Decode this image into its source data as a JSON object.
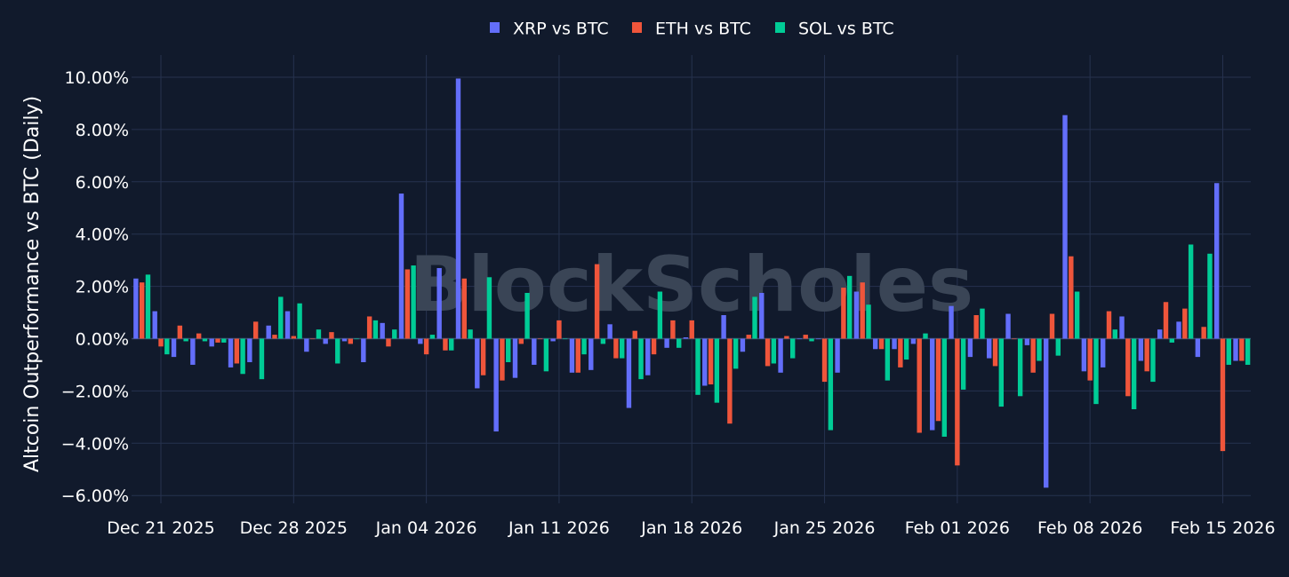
{
  "chart_data": {
    "type": "bar",
    "ylabel": "Altcoin Outperformance vs BTC (Daily)",
    "ylim": [
      -6.5,
      10.6
    ],
    "y_ticks": [
      -6,
      -4,
      -2,
      0,
      2,
      4,
      6,
      8,
      10
    ],
    "y_tick_labels": [
      "−6.00%",
      "−4.00%",
      "−2.00%",
      "0.00%",
      "2.00%",
      "4.00%",
      "6.00%",
      "8.00%",
      "10.00%"
    ],
    "x_ticks": [
      "2025-12-21",
      "2025-12-28",
      "2026-01-04",
      "2026-01-11",
      "2026-01-18",
      "2026-01-25",
      "2026-02-01",
      "2026-02-08",
      "2026-02-15"
    ],
    "x_tick_labels": [
      "Dec 21 2025",
      "Dec 28 2025",
      "Jan 04 2026",
      "Jan 11 2026",
      "Jan 18 2026",
      "Jan 25 2026",
      "Feb 01 2026",
      "Feb 08 2026",
      "Feb 15 2026"
    ],
    "xlim": [
      "2025-12-20",
      "2026-02-16"
    ],
    "grid": true,
    "legend_position": "top-center",
    "watermark": "BlockScholes",
    "x": [
      "2025-12-20",
      "2025-12-21",
      "2025-12-22",
      "2025-12-23",
      "2025-12-24",
      "2025-12-25",
      "2025-12-26",
      "2025-12-27",
      "2025-12-28",
      "2025-12-29",
      "2025-12-30",
      "2025-12-31",
      "2026-01-01",
      "2026-01-02",
      "2026-01-03",
      "2026-01-04",
      "2026-01-05",
      "2026-01-06",
      "2026-01-07",
      "2026-01-08",
      "2026-01-09",
      "2026-01-10",
      "2026-01-11",
      "2026-01-12",
      "2026-01-13",
      "2026-01-14",
      "2026-01-15",
      "2026-01-16",
      "2026-01-17",
      "2026-01-18",
      "2026-01-19",
      "2026-01-20",
      "2026-01-21",
      "2026-01-22",
      "2026-01-23",
      "2026-01-24",
      "2026-01-25",
      "2026-01-26",
      "2026-01-27",
      "2026-01-28",
      "2026-01-29",
      "2026-01-30",
      "2026-01-31",
      "2026-02-01",
      "2026-02-02",
      "2026-02-03",
      "2026-02-04",
      "2026-02-05",
      "2026-02-06",
      "2026-02-07",
      "2026-02-08",
      "2026-02-09",
      "2026-02-10",
      "2026-02-11",
      "2026-02-12",
      "2026-02-13",
      "2026-02-14",
      "2026-02-15",
      "2026-02-16"
    ],
    "series": [
      {
        "name": "XRP vs BTC",
        "color": "#636efa",
        "values": [
          2.3,
          1.05,
          -0.7,
          -1.0,
          -0.3,
          -1.1,
          -0.9,
          0.5,
          1.05,
          -0.5,
          -0.2,
          -0.1,
          -0.9,
          0.6,
          5.55,
          -0.2,
          2.7,
          9.95,
          -1.9,
          -3.55,
          -1.5,
          -1.0,
          -0.1,
          -1.3,
          -1.2,
          0.55,
          -2.65,
          -1.4,
          -0.35,
          0.05,
          -1.8,
          0.9,
          -0.5,
          1.75,
          -1.3,
          0.0,
          0.0,
          -1.3,
          1.8,
          -0.4,
          -0.4,
          -0.2,
          -3.5,
          1.25,
          -0.7,
          -0.75,
          0.95,
          -0.25,
          -5.7,
          8.55,
          -1.25,
          -1.1,
          0.85,
          -0.85,
          0.35,
          0.65,
          -0.7,
          5.95,
          -0.85
        ]
      },
      {
        "name": "ETH vs BTC",
        "color": "#ef553b",
        "values": [
          2.15,
          -0.3,
          0.5,
          0.2,
          -0.15,
          -0.95,
          0.65,
          0.15,
          0.1,
          0.0,
          0.25,
          -0.2,
          0.85,
          -0.3,
          2.65,
          -0.6,
          -0.45,
          2.3,
          -1.4,
          -1.6,
          -0.2,
          0.0,
          0.7,
          -1.3,
          2.85,
          -0.75,
          0.3,
          -0.6,
          0.7,
          0.7,
          -1.75,
          -3.25,
          0.15,
          -1.05,
          0.1,
          0.15,
          -1.65,
          1.95,
          2.15,
          -0.4,
          -1.1,
          -3.6,
          -3.15,
          -4.85,
          0.9,
          -1.05,
          0.0,
          -1.3,
          0.95,
          3.15,
          -1.6,
          1.05,
          -2.2,
          -1.25,
          1.4,
          1.15,
          0.45,
          -4.3,
          -0.85
        ]
      },
      {
        "name": "SOL vs BTC",
        "color": "#00cc96",
        "values": [
          2.45,
          -0.6,
          -0.1,
          -0.1,
          -0.15,
          -1.35,
          -1.55,
          1.6,
          1.35,
          0.35,
          -0.95,
          0.0,
          0.7,
          0.35,
          2.8,
          0.15,
          -0.45,
          0.35,
          2.35,
          -0.9,
          1.75,
          -1.25,
          0.0,
          -0.6,
          -0.2,
          -0.75,
          -1.55,
          1.8,
          -0.35,
          -2.15,
          -2.45,
          -1.15,
          1.6,
          -0.95,
          -0.75,
          -0.1,
          -3.5,
          2.4,
          1.3,
          -1.6,
          -0.8,
          0.2,
          -3.75,
          -1.95,
          1.15,
          -2.6,
          -2.2,
          -0.85,
          -0.65,
          1.8,
          -2.5,
          0.35,
          -2.7,
          -1.65,
          -0.15,
          3.6,
          3.25,
          -1.0,
          -1.0
        ]
      }
    ]
  }
}
